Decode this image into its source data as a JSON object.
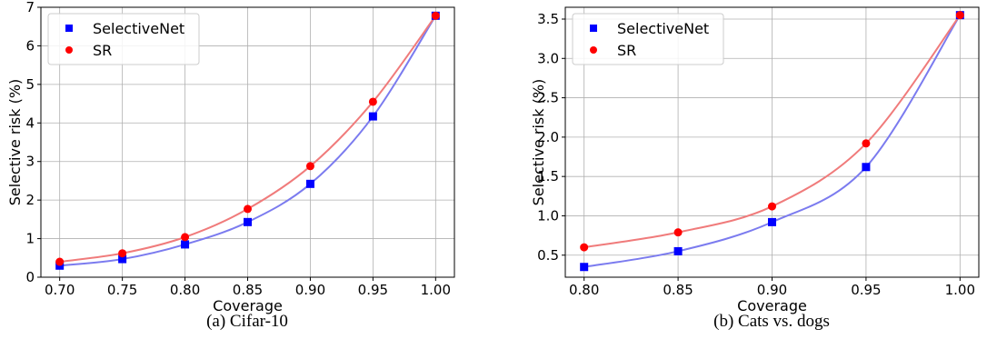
{
  "chart_data": [
    {
      "type": "line",
      "caption": "(a) Cifar-10",
      "xlabel": "Coverage",
      "ylabel": "Selective risk (%)",
      "x": [
        0.7,
        0.75,
        0.8,
        0.85,
        0.9,
        0.95,
        1.0
      ],
      "xlim": [
        0.685,
        1.015
      ],
      "ylim": [
        0,
        7
      ],
      "xticks": [
        "0.70",
        "0.75",
        "0.80",
        "0.85",
        "0.90",
        "0.95",
        "1.00"
      ],
      "yticks": [
        "0",
        "1",
        "2",
        "3",
        "4",
        "5",
        "6",
        "7"
      ],
      "grid": true,
      "legend": "top-left",
      "series": [
        {
          "name": "SelectiveNet",
          "marker": "square",
          "color": "#0000ff",
          "line_color": "#7b7bef",
          "values": [
            0.3,
            0.47,
            0.85,
            1.43,
            2.42,
            4.17,
            6.78
          ]
        },
        {
          "name": "SR",
          "marker": "circle",
          "color": "#ff0000",
          "line_color": "#f07b7b",
          "values": [
            0.4,
            0.62,
            1.04,
            1.77,
            2.88,
            4.55,
            6.78
          ]
        }
      ]
    },
    {
      "type": "line",
      "caption": "(b) Cats vs. dogs",
      "xlabel": "Coverage",
      "ylabel": "Selective risk (%)",
      "x": [
        0.8,
        0.85,
        0.9,
        0.95,
        1.0
      ],
      "xlim": [
        0.79,
        1.01
      ],
      "ylim": [
        0.22,
        3.65
      ],
      "xticks": [
        "0.80",
        "0.85",
        "0.90",
        "0.95",
        "1.00"
      ],
      "yticks": [
        "0.5",
        "1.0",
        "1.5",
        "2.0",
        "2.5",
        "3.0",
        "3.5"
      ],
      "grid": true,
      "legend": "top-left",
      "series": [
        {
          "name": "SelectiveNet",
          "marker": "square",
          "color": "#0000ff",
          "line_color": "#7b7bef",
          "values": [
            0.35,
            0.55,
            0.92,
            1.62,
            3.55
          ]
        },
        {
          "name": "SR",
          "marker": "circle",
          "color": "#ff0000",
          "line_color": "#f07b7b",
          "values": [
            0.6,
            0.79,
            1.12,
            1.92,
            3.55
          ]
        }
      ]
    }
  ]
}
